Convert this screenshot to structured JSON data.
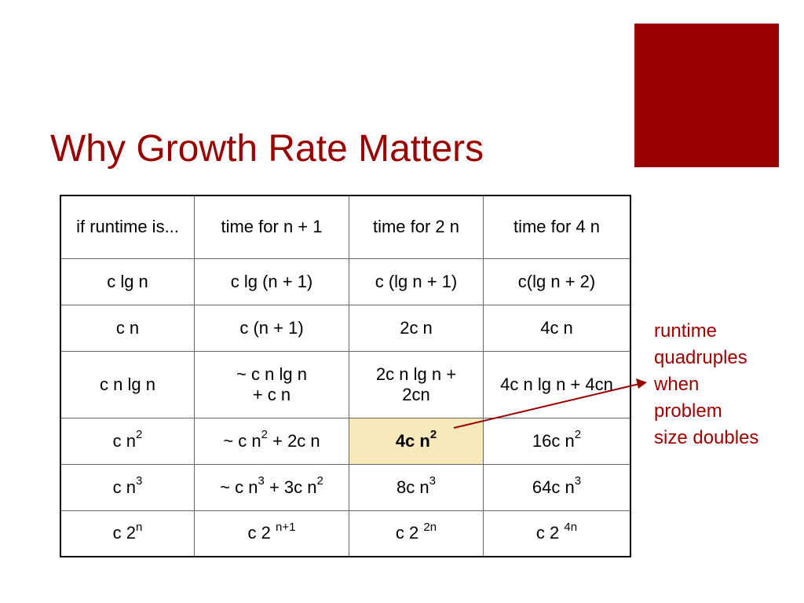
{
  "title": "Why Growth Rate Matters",
  "table": {
    "header": [
      "if runtime is...",
      "time for n + 1",
      "time for 2 n",
      "time for 4 n"
    ],
    "rows": [
      [
        [
          [
            "c lg n"
          ]
        ],
        [
          [
            "c lg (n + 1)"
          ]
        ],
        [
          [
            "c (lg n + 1)"
          ]
        ],
        [
          [
            "c(lg n + 2)"
          ]
        ]
      ],
      [
        [
          [
            "c n"
          ]
        ],
        [
          [
            "c (n + 1)"
          ]
        ],
        [
          [
            "2c n"
          ]
        ],
        [
          [
            "4c n"
          ]
        ]
      ],
      [
        [
          [
            "c n lg n"
          ]
        ],
        [
          [
            "~ c n lg n"
          ],
          [
            "+  c n"
          ]
        ],
        [
          [
            "2c n lg n + 2cn"
          ]
        ],
        [
          [
            "4c n lg n + 4cn"
          ]
        ]
      ],
      [
        [
          [
            "c n",
            {
              "sup": "2"
            }
          ]
        ],
        [
          [
            "~ c n",
            {
              "sup": "2"
            },
            " + 2c n"
          ]
        ],
        {
          "lines": [
            [
              "4c n",
              {
                "sup": "2"
              }
            ]
          ],
          "highlighted": true
        },
        [
          [
            "16c n",
            {
              "sup": "2"
            }
          ]
        ]
      ],
      [
        [
          [
            "c n",
            {
              "sup": "3"
            }
          ]
        ],
        [
          [
            "~ c n",
            {
              "sup": "3"
            },
            " + 3c n",
            {
              "sup": "2"
            }
          ]
        ],
        [
          [
            "8c n",
            {
              "sup": "3"
            }
          ]
        ],
        [
          [
            "64c n",
            {
              "sup": "3"
            }
          ]
        ]
      ],
      [
        [
          [
            "c 2",
            {
              "sup": "n"
            }
          ]
        ],
        [
          [
            "c 2 ",
            {
              "sup": "n+1"
            }
          ]
        ],
        [
          [
            "c 2 ",
            {
              "sup": "2n"
            }
          ]
        ],
        [
          [
            "c 2 ",
            {
              "sup": "4n"
            }
          ]
        ]
      ]
    ]
  },
  "annotation": [
    "runtime",
    "quadruples",
    "when",
    "problem",
    "size doubles"
  ]
}
